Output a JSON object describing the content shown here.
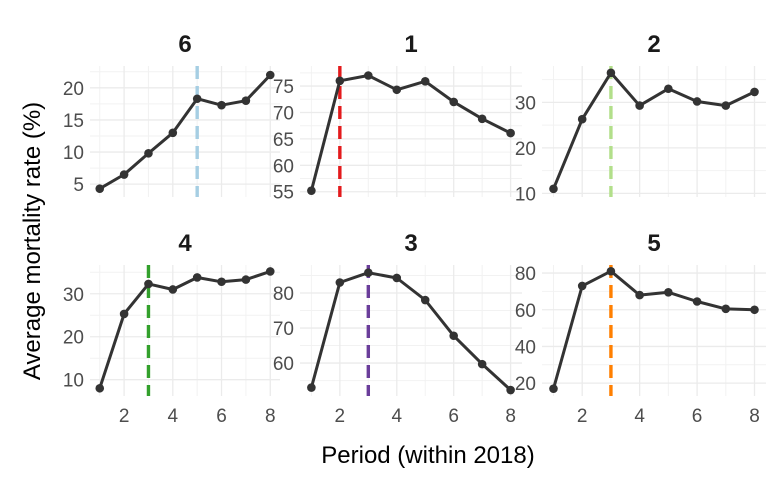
{
  "chart_data": {
    "type": "line",
    "layout": "facet-grid 2x3",
    "xlabel": "Period (within 2018)",
    "ylabel": "Average mortality rate (%)",
    "x_ticks": [
      2,
      4,
      6,
      8
    ],
    "xlim": [
      0.6,
      8.4
    ],
    "line_color": "#333333",
    "grid": true,
    "panels": [
      {
        "title": "6",
        "x": [
          1,
          2,
          3,
          4,
          5,
          6,
          7,
          8
        ],
        "y": [
          4.3,
          6.5,
          9.8,
          13.0,
          18.3,
          17.3,
          18.0,
          22.0
        ],
        "ylim": [
          3.0,
          23.4
        ],
        "y_ticks": [
          5,
          10,
          15,
          20
        ],
        "marker_x": 5,
        "marker_color": "#A6CEE3"
      },
      {
        "title": "1",
        "x": [
          1,
          2,
          3,
          4,
          5,
          6,
          7,
          8
        ],
        "y": [
          55.2,
          76.0,
          77.0,
          74.3,
          75.9,
          72.0,
          68.8,
          66.1
        ],
        "ylim": [
          54.0,
          78.8
        ],
        "y_ticks": [
          55,
          60,
          65,
          70,
          75
        ],
        "marker_x": 2,
        "marker_color": "#E31A1C"
      },
      {
        "title": "2",
        "x": [
          1,
          2,
          3,
          4,
          5,
          6,
          7,
          8
        ],
        "y": [
          11.0,
          26.3,
          36.5,
          29.3,
          33.0,
          30.2,
          29.3,
          32.3
        ],
        "ylim": [
          9.2,
          38.0
        ],
        "y_ticks": [
          10,
          20,
          30
        ],
        "marker_x": 3,
        "marker_color": "#B2DF8A"
      },
      {
        "title": "4",
        "x": [
          1,
          2,
          3,
          4,
          5,
          6,
          7,
          8
        ],
        "y": [
          8.0,
          25.3,
          32.3,
          31.0,
          33.8,
          32.8,
          33.3,
          35.2
        ],
        "ylim": [
          6.2,
          36.7
        ],
        "y_ticks": [
          10,
          20,
          30
        ],
        "marker_x": 3,
        "marker_color": "#33A02C"
      },
      {
        "title": "3",
        "x": [
          1,
          2,
          3,
          4,
          5,
          6,
          7,
          8
        ],
        "y": [
          53.0,
          83.0,
          85.8,
          84.3,
          78.0,
          67.8,
          59.7,
          52.3
        ],
        "ylim": [
          50.6,
          88.0
        ],
        "y_ticks": [
          60,
          70,
          80
        ],
        "marker_x": 3,
        "marker_color": "#6A3D9A"
      },
      {
        "title": "5",
        "x": [
          1,
          2,
          3,
          4,
          5,
          6,
          7,
          8
        ],
        "y": [
          17.0,
          73.0,
          81.0,
          68.0,
          69.5,
          64.5,
          60.5,
          60.0
        ],
        "ylim": [
          13.0,
          84.4
        ],
        "y_ticks": [
          20,
          40,
          60,
          80
        ],
        "marker_x": 3,
        "marker_color": "#FF7F00"
      }
    ]
  }
}
